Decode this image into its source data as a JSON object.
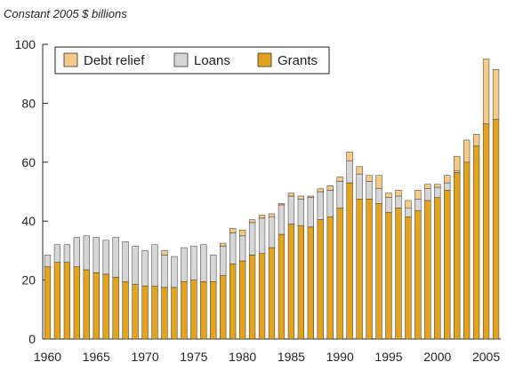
{
  "chart_data": {
    "type": "bar",
    "stacked": true,
    "title": "Constant 2005 $ billions",
    "x": [
      1960,
      1961,
      1962,
      1963,
      1964,
      1965,
      1966,
      1967,
      1968,
      1969,
      1970,
      1971,
      1972,
      1973,
      1974,
      1975,
      1976,
      1977,
      1978,
      1979,
      1980,
      1981,
      1982,
      1983,
      1984,
      1985,
      1986,
      1987,
      1988,
      1989,
      1990,
      1991,
      1992,
      1993,
      1994,
      1995,
      1996,
      1997,
      1998,
      1999,
      2000,
      2001,
      2002,
      2003,
      2004,
      2005,
      2006
    ],
    "x_tick_labels": [
      "1960",
      "1965",
      "1970",
      "1975",
      "1980",
      "1985",
      "1990",
      "1995",
      "2000",
      "2005"
    ],
    "ylim": [
      0,
      100
    ],
    "y_ticks": [
      0,
      20,
      40,
      60,
      80,
      100
    ],
    "legend_position": "top-left",
    "grid": false,
    "series": [
      {
        "name": "Grants",
        "color": "#e3a31f",
        "values": [
          24.5,
          26,
          26,
          24.5,
          23.5,
          22.5,
          22,
          21,
          19.5,
          18.5,
          18,
          18,
          17.5,
          17.5,
          19.5,
          20,
          19.5,
          19.5,
          21.5,
          25.5,
          26.5,
          28.5,
          29,
          31,
          35.5,
          39,
          38.5,
          38,
          40.5,
          41.5,
          44.5,
          53,
          47.5,
          47.5,
          46,
          43,
          44.5,
          41.5,
          43.5,
          47,
          48,
          50.5,
          56.5,
          60,
          65.5,
          73,
          74.5
        ]
      },
      {
        "name": "Loans",
        "color": "#d6d6d6",
        "values": [
          4,
          6,
          6,
          10,
          11.5,
          12,
          11.5,
          13.5,
          13.5,
          13,
          12,
          14,
          11,
          10.5,
          11.5,
          11.5,
          12.5,
          9,
          10,
          10.5,
          8.5,
          11,
          12,
          10.5,
          10,
          9.5,
          9,
          10,
          9.5,
          9,
          9,
          7.5,
          8.5,
          6,
          5,
          5,
          4,
          3,
          4,
          4,
          3.5,
          2.5,
          0.5,
          0,
          0,
          0,
          0
        ]
      },
      {
        "name": "Debt relief",
        "color": "#f5c98a",
        "values": [
          0,
          0,
          0,
          0,
          0,
          0,
          0,
          0,
          0,
          0,
          0,
          0,
          1.5,
          0,
          0,
          0,
          0,
          0,
          1,
          1.5,
          2,
          1,
          1,
          1,
          0.5,
          1,
          1,
          0.5,
          1,
          1.5,
          1.5,
          3,
          2.5,
          2,
          4.5,
          1.5,
          2,
          2.5,
          3,
          1.5,
          1,
          2.5,
          5,
          7.5,
          4,
          22,
          17
        ]
      }
    ]
  }
}
